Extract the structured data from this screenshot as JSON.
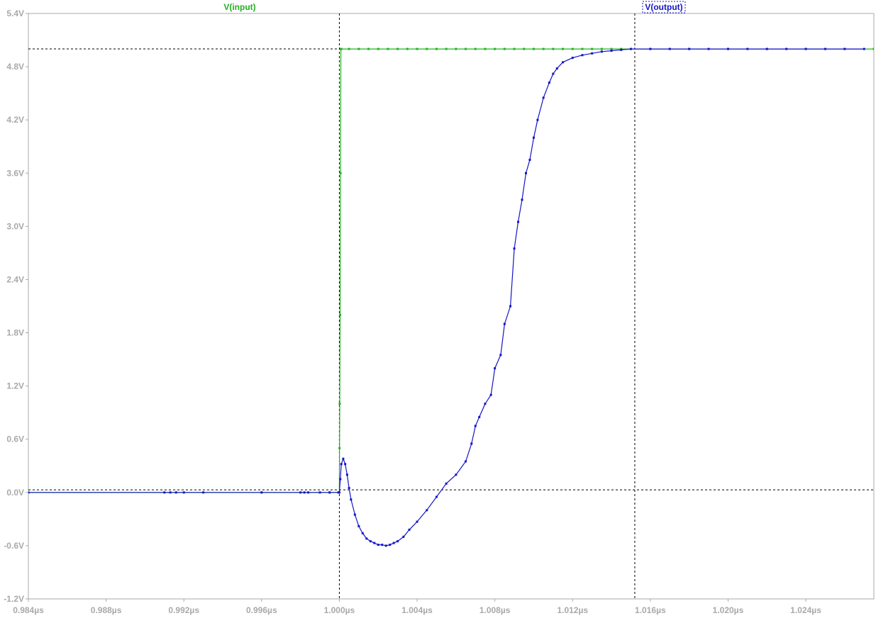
{
  "colors": {
    "background": "#ffffff",
    "axis": "#a9a9a9",
    "tick_text": "#a9a9a9",
    "cursor": "#000000",
    "input_trace": "#22b222",
    "output_trace": "#1414c8"
  },
  "chart_data": {
    "type": "line",
    "title": "",
    "xlabel": "",
    "ylabel": "",
    "xlim": [
      0.984,
      1.0275
    ],
    "ylim": [
      -1.2,
      5.4
    ],
    "grid": false,
    "x_ticks": [
      0.984,
      0.988,
      0.992,
      0.996,
      1.0,
      1.004,
      1.008,
      1.012,
      1.016,
      1.02,
      1.024
    ],
    "x_tick_labels": [
      "0.984µs",
      "0.988µs",
      "0.992µs",
      "0.996µs",
      "1.000µs",
      "1.004µs",
      "1.008µs",
      "1.012µs",
      "1.016µs",
      "1.020µs",
      "1.024µs"
    ],
    "y_ticks": [
      -1.2,
      -0.6,
      0.0,
      0.6,
      1.2,
      1.8,
      2.4,
      3.0,
      3.6,
      4.2,
      4.8,
      5.4
    ],
    "y_tick_labels": [
      "-1.2V",
      "-0.6V",
      "0.0V",
      "0.6V",
      "1.2V",
      "1.8V",
      "2.4V",
      "3.0V",
      "3.6V",
      "4.2V",
      "4.8V",
      "5.4V"
    ],
    "cursors": {
      "vertical_x": [
        1.0,
        1.0152
      ],
      "horizontal_y": [
        0.03,
        5.0
      ]
    },
    "series": [
      {
        "name": "V(input)",
        "color": "#22b222",
        "x": [
          0.984,
          0.996,
          0.9995,
          1.0,
          1.00001,
          1.00002,
          1.00004,
          1.00006,
          1.00008,
          1.0001,
          1.0005,
          1.001,
          1.0015,
          1.002,
          1.0025,
          1.003,
          1.0035,
          1.004,
          1.0045,
          1.005,
          1.0055,
          1.006,
          1.0065,
          1.007,
          1.0075,
          1.008,
          1.0085,
          1.009,
          1.0095,
          1.01,
          1.0105,
          1.011,
          1.0115,
          1.012,
          1.0125,
          1.013,
          1.0135,
          1.014,
          1.0145,
          1.015,
          1.016,
          1.018,
          1.02,
          1.022,
          1.024,
          1.026,
          1.0275
        ],
        "y": [
          0.0,
          0.0,
          0.0,
          0.0,
          0.5,
          1.0,
          2.0,
          3.6,
          5.0,
          5.0,
          5.0,
          5.0,
          5.0,
          5.0,
          5.0,
          5.0,
          5.0,
          5.0,
          5.0,
          5.0,
          5.0,
          5.0,
          5.0,
          5.0,
          5.0,
          5.0,
          5.0,
          5.0,
          5.0,
          5.0,
          5.0,
          5.0,
          5.0,
          5.0,
          5.0,
          5.0,
          5.0,
          5.0,
          5.0,
          5.0,
          5.0,
          5.0,
          5.0,
          5.0,
          5.0,
          5.0,
          5.0
        ]
      },
      {
        "name": "V(output)",
        "color": "#1414c8",
        "x": [
          0.984,
          0.991,
          0.9913,
          0.9916,
          0.992,
          0.993,
          0.996,
          0.998,
          0.9982,
          0.9984,
          0.999,
          0.9995,
          0.99995,
          1.0,
          1.00005,
          1.0001,
          1.0002,
          1.0003,
          1.0004,
          1.0005,
          1.0006,
          1.0008,
          1.001,
          1.0012,
          1.0014,
          1.0016,
          1.0018,
          1.002,
          1.0022,
          1.0024,
          1.0026,
          1.0028,
          1.003,
          1.0033,
          1.0036,
          1.004,
          1.0045,
          1.005,
          1.0055,
          1.006,
          1.0065,
          1.0068,
          1.007,
          1.0072,
          1.0075,
          1.0078,
          1.008,
          1.0083,
          1.0085,
          1.0088,
          1.009,
          1.0092,
          1.0094,
          1.0096,
          1.0098,
          1.01,
          1.0102,
          1.0105,
          1.0108,
          1.011,
          1.0112,
          1.0115,
          1.012,
          1.0125,
          1.013,
          1.0135,
          1.014,
          1.0145,
          1.015,
          1.016,
          1.017,
          1.018,
          1.019,
          1.02,
          1.021,
          1.022,
          1.023,
          1.024,
          1.025,
          1.026,
          1.027
        ],
        "y": [
          0.0,
          0.0,
          0.0,
          0.0,
          0.0,
          0.0,
          0.0,
          0.0,
          0.0,
          0.0,
          0.0,
          0.0,
          0.0,
          0.0,
          0.15,
          0.32,
          0.38,
          0.32,
          0.2,
          0.05,
          -0.08,
          -0.25,
          -0.38,
          -0.46,
          -0.52,
          -0.55,
          -0.57,
          -0.59,
          -0.59,
          -0.6,
          -0.59,
          -0.57,
          -0.55,
          -0.5,
          -0.42,
          -0.33,
          -0.2,
          -0.05,
          0.1,
          0.2,
          0.35,
          0.55,
          0.75,
          0.85,
          1.0,
          1.1,
          1.4,
          1.55,
          1.9,
          2.1,
          2.75,
          3.05,
          3.3,
          3.6,
          3.75,
          4.0,
          4.2,
          4.45,
          4.62,
          4.72,
          4.78,
          4.85,
          4.9,
          4.93,
          4.95,
          4.97,
          4.98,
          4.99,
          5.0,
          5.0,
          5.0,
          5.0,
          5.0,
          5.0,
          5.0,
          5.0,
          5.0,
          5.0,
          5.0,
          5.0,
          5.0
        ]
      }
    ]
  }
}
